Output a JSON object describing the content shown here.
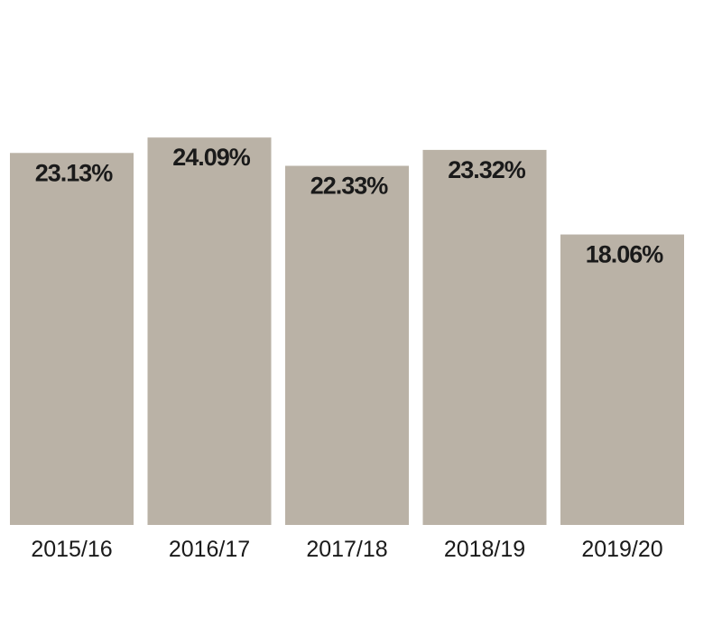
{
  "chart_data": {
    "type": "bar",
    "title": "",
    "xlabel": "",
    "ylabel": "",
    "ylim": [
      0,
      27
    ],
    "grid": false,
    "legend": "none",
    "categories": [
      "2015/16",
      "2016/17",
      "2017/18",
      "2018/19",
      "2019/20"
    ],
    "values": [
      23.13,
      24.09,
      22.33,
      23.32,
      18.06
    ],
    "data_labels": [
      "23.13%",
      "24.09%",
      "22.33%",
      "23.32%",
      "18.06%"
    ],
    "colors": {
      "bar": "#bab2a6",
      "text": "#1a1a1a",
      "background": "#ffffff"
    }
  }
}
